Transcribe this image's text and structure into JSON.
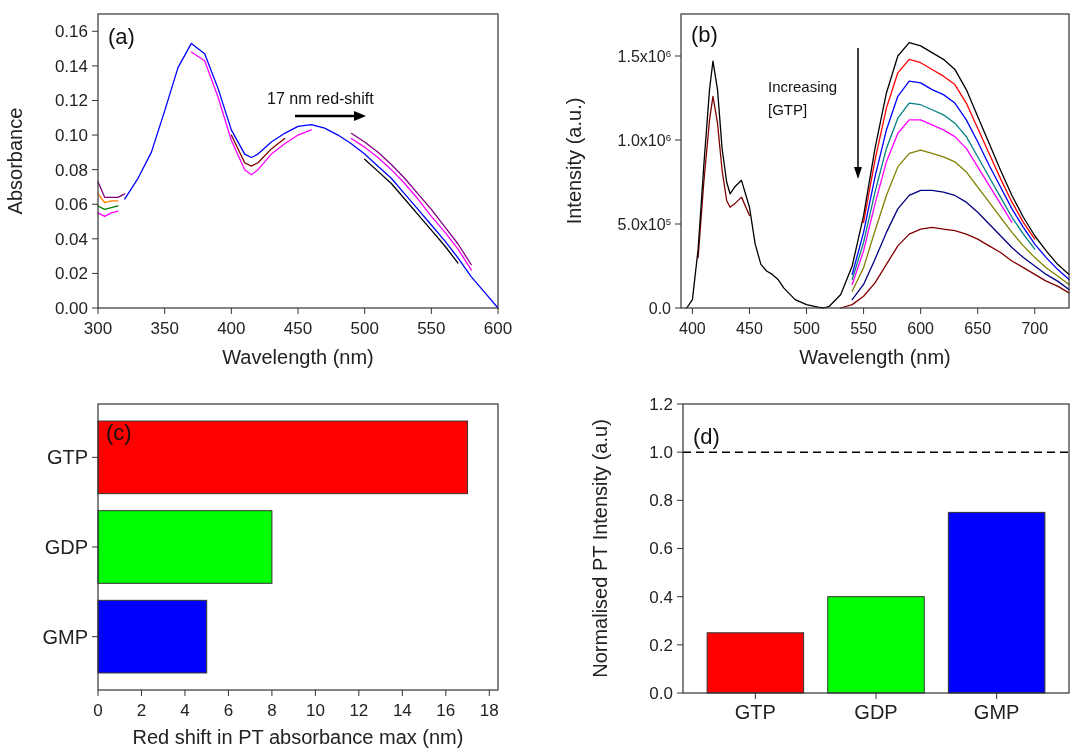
{
  "chart_data": [
    {
      "type": "line",
      "xlabel": "Wavelength (nm)",
      "ylabel": "Absorbance",
      "xlim": [
        300,
        600
      ],
      "ylim": [
        0,
        0.17
      ],
      "xticks": [
        300,
        350,
        400,
        450,
        500,
        550,
        600
      ],
      "yticks": [
        {
          "value": 0,
          "label": "0.00"
        },
        {
          "value": 0.02,
          "label": "0.02"
        },
        {
          "value": 0.04,
          "label": "0.04"
        },
        {
          "value": 0.06,
          "label": "0.06"
        },
        {
          "value": 0.08,
          "label": "0.08"
        },
        {
          "value": 0.1,
          "label": "0.10"
        },
        {
          "value": 0.12,
          "label": "0.12"
        },
        {
          "value": 0.14,
          "label": "0.14"
        },
        {
          "value": 0.16,
          "label": "0.16"
        }
      ],
      "annotations": [
        "(a)",
        "17 nm red-shift"
      ],
      "x": [
        300,
        305,
        310,
        315,
        320,
        330,
        340,
        350,
        360,
        370,
        380,
        390,
        400,
        410,
        415,
        420,
        430,
        440,
        450,
        460,
        470,
        480,
        490,
        500,
        510,
        520,
        530,
        540,
        550,
        560,
        570,
        580,
        590,
        600
      ],
      "series": [
        {
          "color": "#800080",
          "values": [
            0.073,
            0.064,
            0.064,
            0.064,
            0.066,
            null,
            null,
            null,
            null,
            null,
            null,
            null,
            null,
            null,
            null,
            null,
            null,
            null,
            null,
            null,
            null,
            null,
            0.101,
            0.096,
            0.09,
            0.083,
            0.075,
            0.066,
            0.057,
            0.047,
            0.037,
            0.025,
            null,
            null
          ]
        },
        {
          "color": "#ff8000",
          "values": [
            0.066,
            0.061,
            0.062,
            0.062,
            null,
            null,
            null,
            null,
            null,
            null,
            null,
            null,
            null,
            null,
            null,
            null,
            null,
            null,
            null,
            null,
            null,
            null,
            null,
            null,
            null,
            null,
            null,
            null,
            null,
            null,
            null,
            null,
            null,
            null
          ]
        },
        {
          "color": "#008000",
          "values": [
            0.059,
            0.057,
            0.058,
            0.059,
            null,
            null,
            null,
            null,
            null,
            null,
            null,
            null,
            null,
            null,
            null,
            null,
            null,
            null,
            null,
            null,
            null,
            null,
            null,
            null,
            null,
            null,
            null,
            null,
            null,
            null,
            null,
            null,
            null,
            null
          ]
        },
        {
          "color": "#ff00ff",
          "values": [
            0.055,
            0.053,
            0.055,
            0.056,
            null,
            null,
            null,
            null,
            null,
            0.148,
            0.143,
            0.122,
            0.097,
            0.08,
            0.077,
            0.08,
            0.089,
            0.095,
            0.1,
            0.103,
            null,
            null,
            0.098,
            0.093,
            0.087,
            0.08,
            0.072,
            0.063,
            0.053,
            0.044,
            0.034,
            0.022,
            null,
            null
          ]
        },
        {
          "color": "#800000",
          "values": [
            null,
            null,
            null,
            null,
            null,
            null,
            null,
            null,
            null,
            null,
            null,
            null,
            0.1,
            0.084,
            0.082,
            0.084,
            0.092,
            0.098,
            null,
            null,
            null,
            null,
            null,
            null,
            null,
            null,
            null,
            null,
            null,
            null,
            null,
            null,
            null,
            null
          ]
        },
        {
          "color": "#000000",
          "values": [
            null,
            null,
            null,
            null,
            null,
            null,
            null,
            null,
            null,
            null,
            null,
            null,
            null,
            null,
            null,
            null,
            null,
            null,
            null,
            null,
            null,
            null,
            null,
            0.086,
            0.079,
            0.072,
            0.063,
            0.054,
            0.045,
            0.036,
            0.026,
            null,
            null,
            null
          ]
        },
        {
          "color": "#0000ff",
          "values": [
            null,
            null,
            null,
            null,
            0.063,
            0.075,
            0.09,
            0.114,
            0.139,
            0.153,
            0.147,
            0.127,
            0.103,
            0.089,
            0.087,
            0.089,
            0.096,
            0.101,
            0.105,
            0.106,
            0.104,
            0.1,
            0.095,
            0.089,
            0.082,
            0.075,
            0.066,
            0.057,
            0.048,
            0.039,
            0.029,
            0.018,
            0.009,
            0.0
          ]
        }
      ]
    },
    {
      "type": "line",
      "xlabel": "Wavelength (nm)",
      "ylabel": "Intensity (a.u.)",
      "xlim": [
        390,
        730
      ],
      "ylim": [
        0,
        1750000
      ],
      "xticks": [
        400,
        450,
        500,
        550,
        600,
        650,
        700
      ],
      "yticks": [
        {
          "value": 0,
          "label": "0.0"
        },
        {
          "value": 500000,
          "label": "5.0x10$^{5}$"
        },
        {
          "value": 1000000,
          "label": "1.0x10$^{6}$"
        },
        {
          "value": 1500000,
          "label": "1.5x10$^{6}$"
        }
      ],
      "annotations": [
        "(b)",
        "Increasing [GTP]"
      ],
      "x": [
        395,
        400,
        405,
        410,
        415,
        418,
        422,
        426,
        430,
        433,
        437,
        443,
        450,
        455,
        460,
        465,
        470,
        475,
        480,
        490,
        500,
        510,
        515,
        520,
        530,
        540,
        550,
        560,
        570,
        580,
        590,
        600,
        610,
        620,
        630,
        640,
        650,
        660,
        670,
        680,
        690,
        700,
        710,
        720,
        730
      ],
      "series": [
        {
          "color": "#800000",
          "values": [
            null,
            null,
            300000,
            750000,
            1120000,
            1260000,
            1100000,
            820000,
            640000,
            600000,
            620000,
            660000,
            550000,
            null,
            null,
            null,
            null,
            null,
            null,
            null,
            null,
            null,
            null,
            null,
            0,
            20000,
            70000,
            150000,
            260000,
            370000,
            440000,
            470000,
            480000,
            470000,
            460000,
            440000,
            410000,
            370000,
            330000,
            280000,
            240000,
            200000,
            160000,
            130000,
            90000
          ]
        },
        {
          "color": "#000080",
          "values": [
            null,
            null,
            null,
            null,
            null,
            null,
            null,
            null,
            null,
            null,
            null,
            null,
            null,
            null,
            null,
            null,
            null,
            null,
            null,
            null,
            null,
            null,
            null,
            null,
            null,
            50000,
            140000,
            290000,
            450000,
            590000,
            670000,
            700000,
            700000,
            690000,
            670000,
            630000,
            570000,
            500000,
            430000,
            360000,
            300000,
            250000,
            200000,
            160000,
            110000
          ]
        },
        {
          "color": "#808000",
          "values": [
            null,
            null,
            null,
            null,
            null,
            null,
            null,
            null,
            null,
            null,
            null,
            null,
            null,
            null,
            null,
            null,
            null,
            null,
            null,
            null,
            null,
            null,
            null,
            null,
            null,
            100000,
            240000,
            460000,
            670000,
            840000,
            920000,
            940000,
            920000,
            900000,
            870000,
            810000,
            720000,
            630000,
            540000,
            450000,
            370000,
            300000,
            240000,
            190000,
            140000
          ]
        },
        {
          "color": "#ff00ff",
          "values": [
            null,
            null,
            null,
            null,
            null,
            null,
            null,
            null,
            null,
            null,
            null,
            null,
            null,
            null,
            null,
            null,
            null,
            null,
            null,
            null,
            null,
            null,
            null,
            null,
            null,
            140000,
            340000,
            620000,
            870000,
            1040000,
            1120000,
            1120000,
            1090000,
            1060000,
            1020000,
            950000,
            840000,
            730000,
            620000,
            510000,
            null,
            null,
            null,
            null,
            null
          ]
        },
        {
          "color": "#008080",
          "values": [
            null,
            null,
            null,
            null,
            null,
            null,
            null,
            null,
            null,
            null,
            null,
            null,
            null,
            null,
            null,
            null,
            null,
            null,
            null,
            null,
            null,
            null,
            null,
            null,
            null,
            170000,
            390000,
            690000,
            950000,
            1130000,
            1220000,
            1210000,
            1180000,
            1150000,
            1100000,
            1020000,
            900000,
            780000,
            660000,
            540000,
            440000,
            350000,
            null,
            null,
            null
          ]
        },
        {
          "color": "#0000ff",
          "values": [
            null,
            null,
            null,
            null,
            null,
            null,
            null,
            null,
            null,
            null,
            null,
            null,
            null,
            null,
            null,
            null,
            null,
            null,
            null,
            null,
            null,
            null,
            null,
            null,
            null,
            200000,
            450000,
            780000,
            1060000,
            1260000,
            1350000,
            1340000,
            1300000,
            1270000,
            1220000,
            1120000,
            990000,
            850000,
            720000,
            590000,
            480000,
            380000,
            300000,
            230000,
            170000
          ]
        },
        {
          "color": "#ff0000",
          "values": [
            null,
            null,
            null,
            null,
            null,
            null,
            null,
            null,
            null,
            null,
            null,
            null,
            null,
            null,
            null,
            null,
            null,
            null,
            null,
            null,
            null,
            null,
            null,
            null,
            null,
            null,
            510000,
            880000,
            1190000,
            1400000,
            1480000,
            1460000,
            1420000,
            1380000,
            1330000,
            1220000,
            1070000,
            920000,
            770000,
            630000,
            510000,
            410000,
            null,
            null,
            null
          ]
        },
        {
          "color": "#000000",
          "values": [
            0,
            50000,
            350000,
            850000,
            1300000,
            1470000,
            1300000,
            950000,
            750000,
            680000,
            720000,
            760000,
            600000,
            380000,
            260000,
            220000,
            200000,
            170000,
            120000,
            50000,
            20000,
            5000,
            0,
            10000,
            80000,
            250000,
            550000,
            950000,
            1280000,
            1500000,
            1580000,
            1560000,
            1520000,
            1480000,
            1420000,
            1300000,
            1140000,
            980000,
            820000,
            670000,
            540000,
            430000,
            340000,
            260000,
            200000
          ]
        }
      ]
    },
    {
      "type": "bar",
      "orientation": "horizontal",
      "xlabel": "Red shift in PT absorbance max (nm)",
      "categories": [
        "GTP",
        "GDP",
        "GMP"
      ],
      "values": [
        17,
        8,
        5
      ],
      "colors": [
        "#ff0000",
        "#00ff00",
        "#0000ff"
      ],
      "xlim": [
        0,
        18.4
      ],
      "xticks": [
        0,
        2,
        4,
        6,
        8,
        10,
        12,
        14,
        16,
        18
      ],
      "annotations": [
        "(c)"
      ]
    },
    {
      "type": "bar",
      "ylabel": "Normalised PT Intensity (a.u)",
      "categories": [
        "GTP",
        "GDP",
        "GMP"
      ],
      "values": [
        0.25,
        0.4,
        0.75
      ],
      "colors": [
        "#ff0000",
        "#00ff00",
        "#0000ff"
      ],
      "ylim": [
        0,
        1.2
      ],
      "yticks": [
        {
          "value": 0,
          "label": "0.0"
        },
        {
          "value": 0.2,
          "label": "0.2"
        },
        {
          "value": 0.4,
          "label": "0.4"
        },
        {
          "value": 0.6,
          "label": "0.6"
        },
        {
          "value": 0.8,
          "label": "0.8"
        },
        {
          "value": 1,
          "label": "1.0"
        },
        {
          "value": 1.2,
          "label": "1.2"
        }
      ],
      "ref_lines": [
        {
          "axis": "y",
          "value": 1,
          "label": null,
          "color": "#000000",
          "line_style": "dashed"
        }
      ],
      "annotations": [
        "(d)"
      ]
    }
  ]
}
